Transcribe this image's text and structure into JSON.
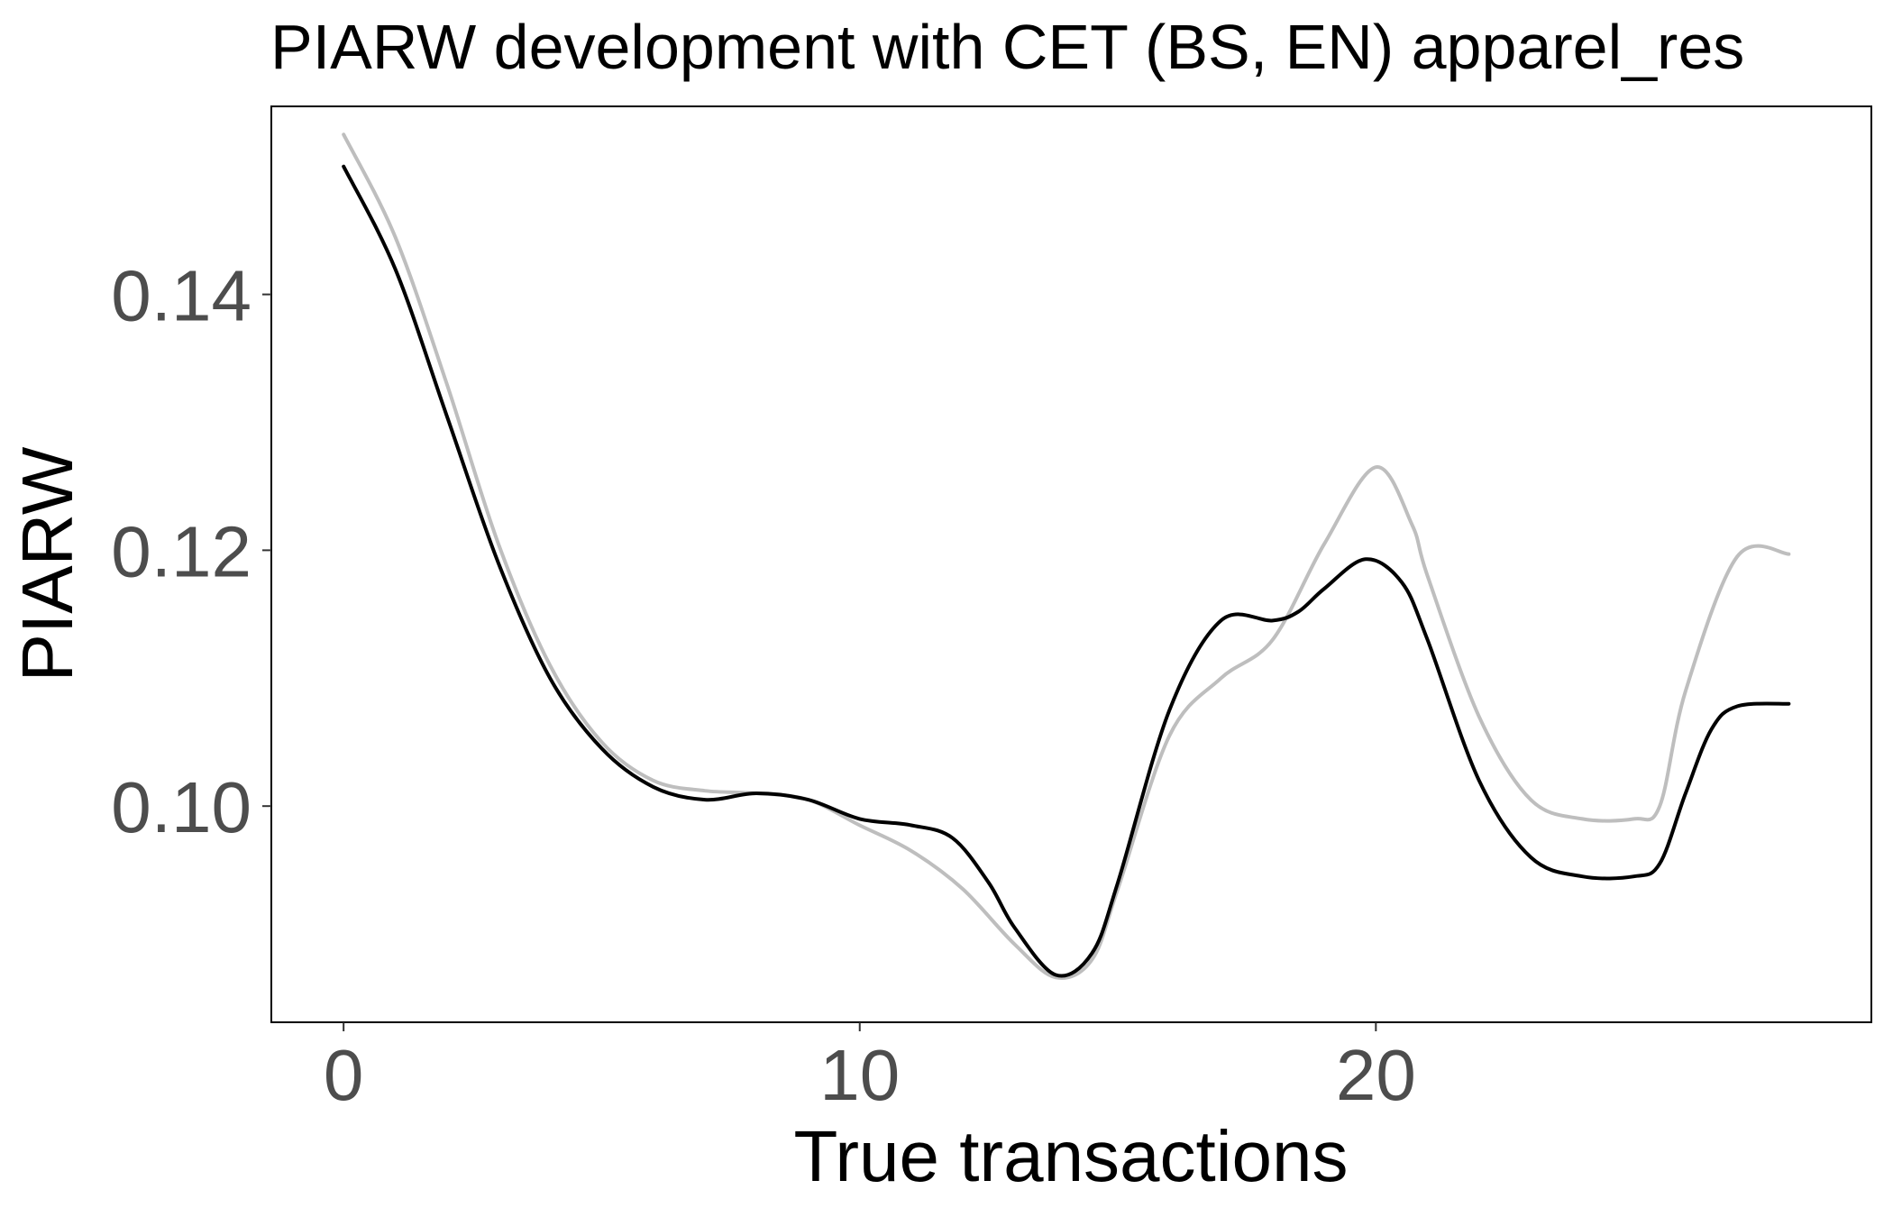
{
  "chart_data": {
    "type": "line",
    "title": "PIARW development with CET (BS, EN) apparel_res",
    "xlabel": "True transactions",
    "ylabel": "PIARW",
    "xlim": [
      -1.4,
      29.6
    ],
    "ylim": [
      0.0831,
      0.1547
    ],
    "x_ticks": [
      0,
      10,
      20
    ],
    "x_tick_labels": [
      "0",
      "10",
      "20"
    ],
    "y_ticks": [
      0.1,
      0.12,
      0.14
    ],
    "y_tick_labels": [
      "0.10",
      "0.12",
      "0.14"
    ],
    "grid": false,
    "legend": "none",
    "series": [
      {
        "color": "#bebebe",
        "x": [
          0,
          1,
          2,
          3,
          4,
          5,
          6,
          7,
          8,
          9,
          10,
          11,
          12,
          13,
          13.8,
          14.5,
          15,
          16,
          17,
          18,
          19,
          20,
          20.7,
          21,
          22,
          23,
          24,
          25,
          25.5,
          26,
          27,
          28
        ],
        "y": [
          0.1525,
          0.1445,
          0.133,
          0.1205,
          0.111,
          0.105,
          0.102,
          0.1012,
          0.101,
          0.1005,
          0.0985,
          0.0965,
          0.0935,
          0.0892,
          0.0866,
          0.088,
          0.0935,
          0.1055,
          0.11,
          0.113,
          0.1205,
          0.1265,
          0.122,
          0.118,
          0.107,
          0.1005,
          0.099,
          0.099,
          0.1,
          0.109,
          0.1195,
          0.1197
        ]
      },
      {
        "color": "#000000",
        "x": [
          0,
          1,
          2,
          3,
          4,
          5,
          6,
          7,
          8,
          9,
          10,
          11,
          11.8,
          12.5,
          13,
          13.8,
          14.5,
          15,
          16,
          17,
          18,
          18.5,
          19,
          19.8,
          20.5,
          21,
          22,
          23,
          24,
          25,
          25.5,
          26,
          26.5,
          27,
          28
        ],
        "y": [
          0.15,
          0.142,
          0.1305,
          0.119,
          0.11,
          0.1045,
          0.1015,
          0.1005,
          0.101,
          0.1005,
          0.099,
          0.0985,
          0.0975,
          0.094,
          0.0905,
          0.0868,
          0.0885,
          0.094,
          0.1075,
          0.1145,
          0.1145,
          0.1152,
          0.117,
          0.1193,
          0.1175,
          0.113,
          0.102,
          0.096,
          0.0945,
          0.0945,
          0.0955,
          0.101,
          0.106,
          0.1078,
          0.108
        ]
      }
    ]
  }
}
